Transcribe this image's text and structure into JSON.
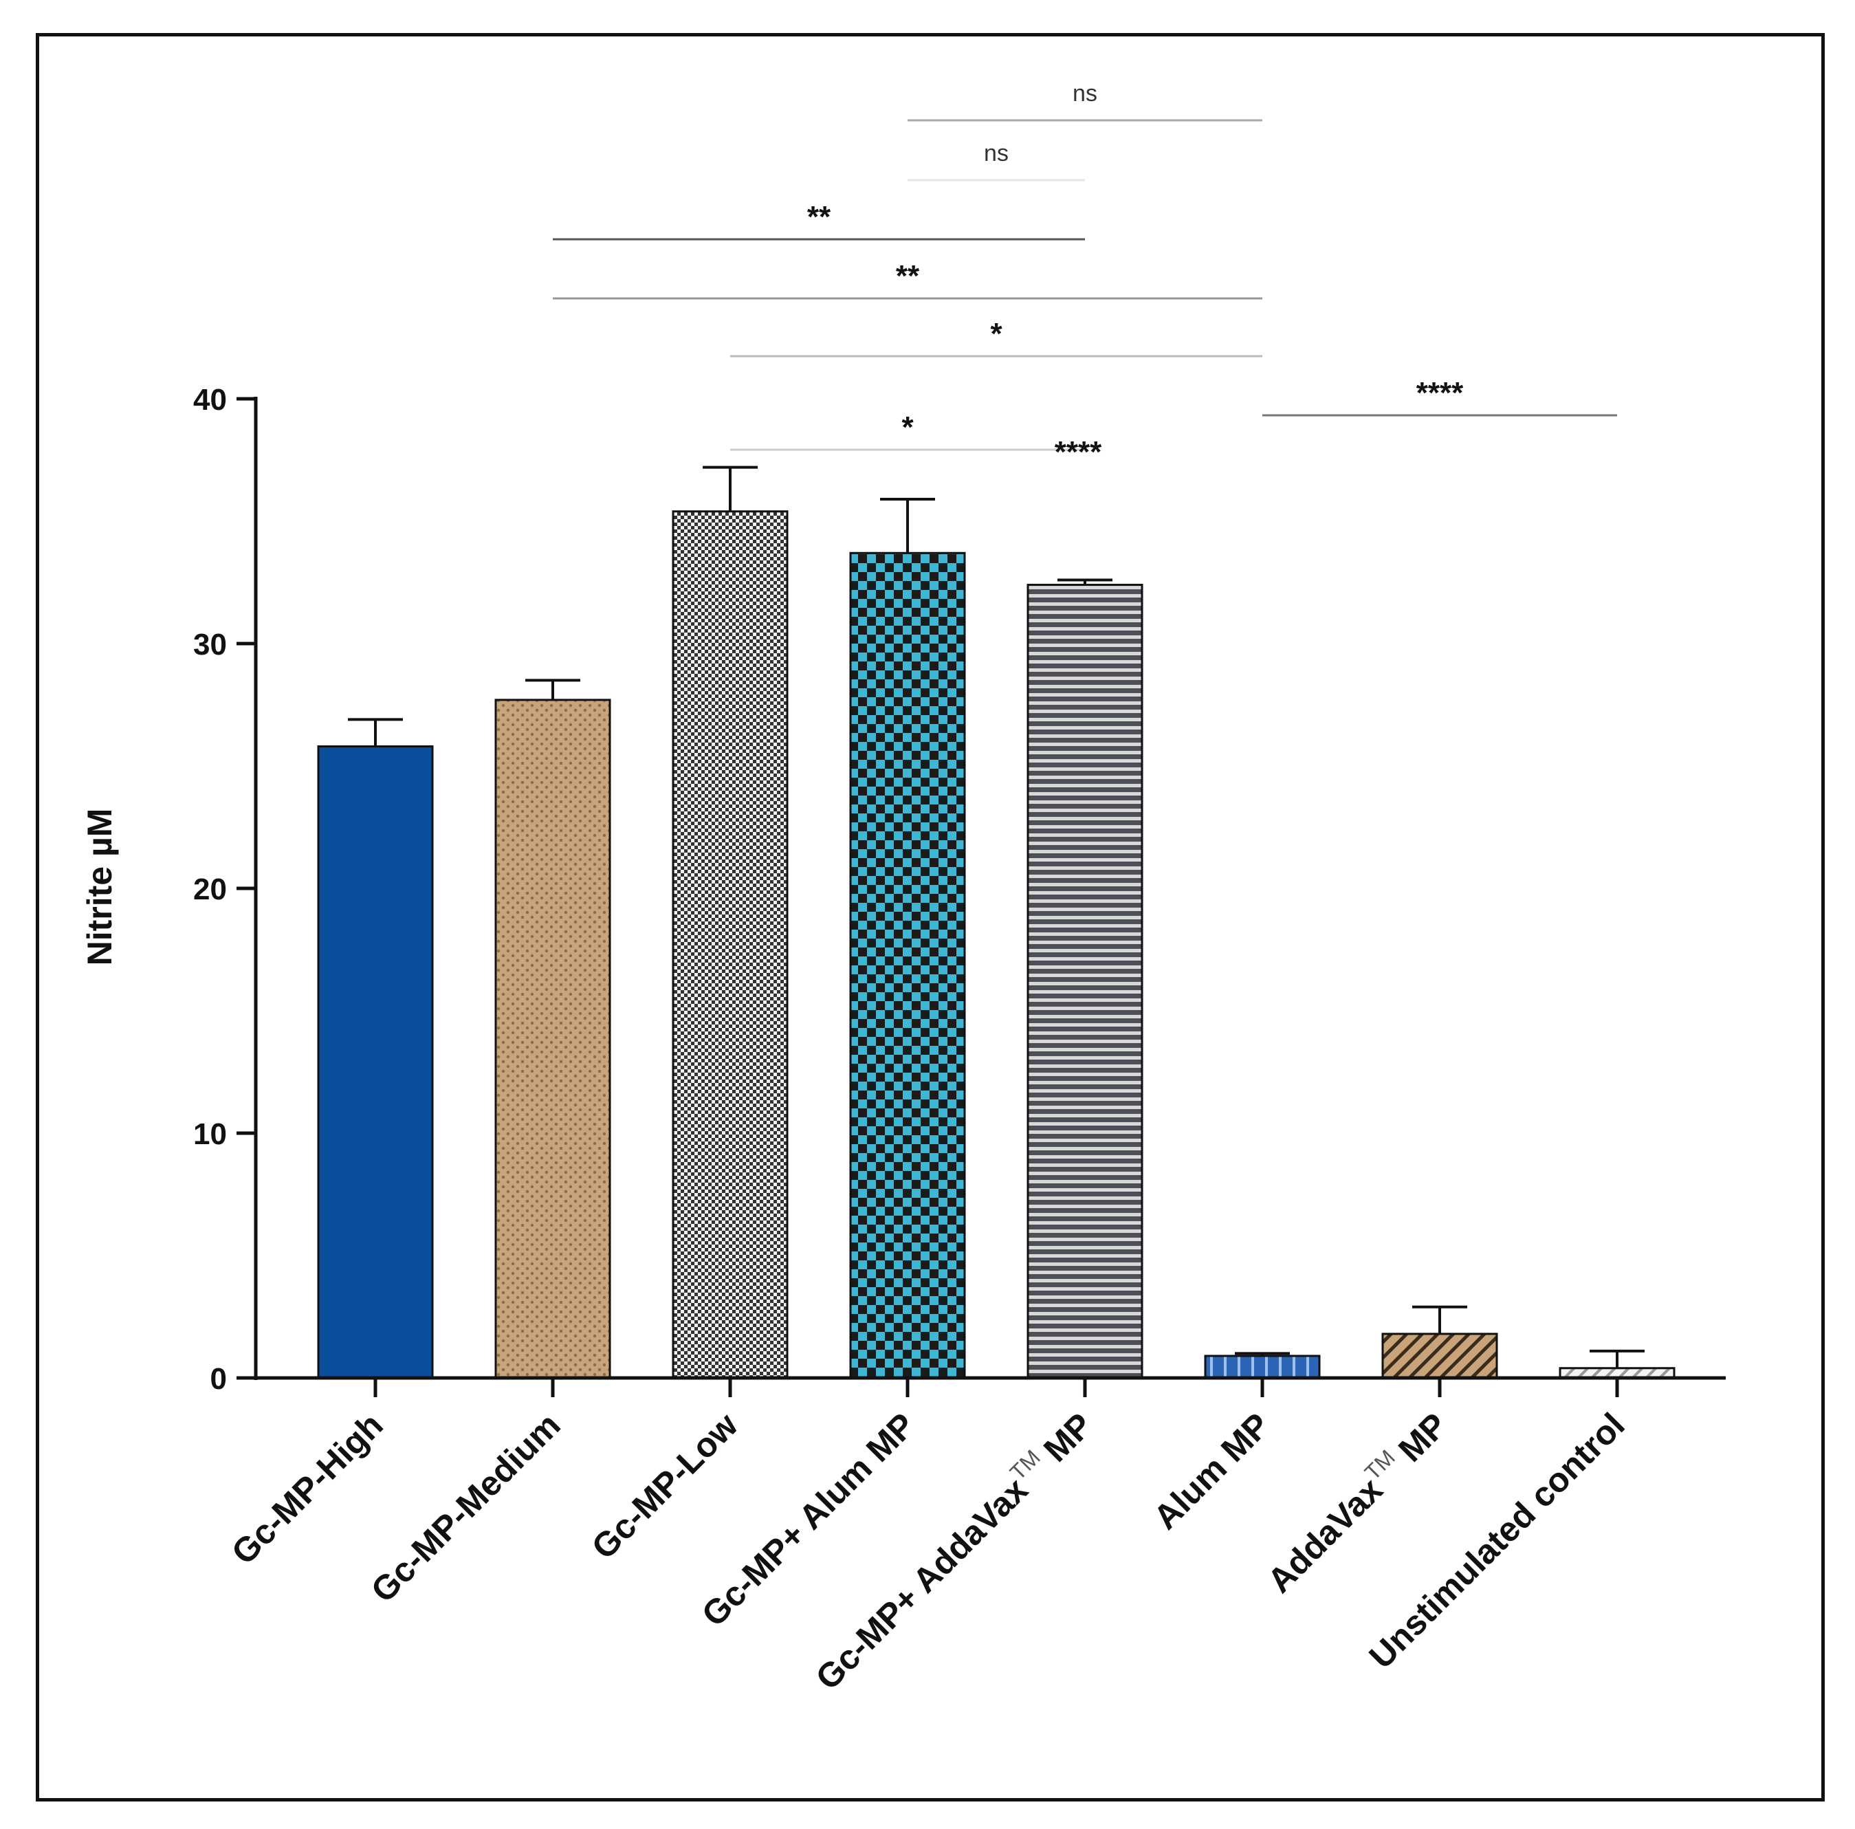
{
  "chart_data": {
    "type": "bar",
    "title": "",
    "xlabel": "",
    "ylabel": "Nitrite µM",
    "ylim": [
      0,
      40
    ],
    "yticks": [
      0,
      10,
      20,
      30,
      40
    ],
    "categories": [
      "Gc-MP-High",
      "Gc-MP-Medium",
      "Gc-MP-Low",
      "Gc-MP+ Alum MP",
      "Gc-MP+ AddaVax",
      "Alum MP",
      "AddaVax",
      "Unstimulated control"
    ],
    "category_superscripts": [
      "",
      "",
      "",
      "",
      "TM",
      "",
      "TM",
      ""
    ],
    "category_suffixes": [
      "",
      "",
      "",
      "",
      "MP",
      "",
      "MP",
      ""
    ],
    "values": [
      25.8,
      27.7,
      35.4,
      33.7,
      32.4,
      0.9,
      1.8,
      0.4
    ],
    "errors": [
      1.1,
      0.8,
      1.8,
      2.2,
      0.2,
      0.1,
      1.1,
      0.7
    ],
    "fill_patterns": [
      "solid",
      "dots",
      "fine-check",
      "check",
      "hstripes",
      "vstripes",
      "diagonal",
      "light-diagonal"
    ],
    "colors": [
      "#0b4f9c",
      "#c9a47a",
      "#8c8c8c",
      "#3fb6d3",
      "#6e7075",
      "#2c64b6",
      "#c9a47a",
      "#e9e9e9"
    ],
    "comparisons": [
      {
        "from": 3,
        "to": 5,
        "label": "ns"
      },
      {
        "from": 3,
        "to": 4,
        "label": "ns"
      },
      {
        "from": 1,
        "to": 4,
        "label": "**"
      },
      {
        "from": 1,
        "to": 5,
        "label": "**"
      },
      {
        "from": 2,
        "to": 5,
        "label": "*"
      },
      {
        "from": 5,
        "to": 7,
        "label": "****"
      },
      {
        "from": 2,
        "to": 4,
        "label": "*"
      }
    ],
    "bar_annotations": [
      {
        "index": 4,
        "label": "****"
      }
    ]
  }
}
